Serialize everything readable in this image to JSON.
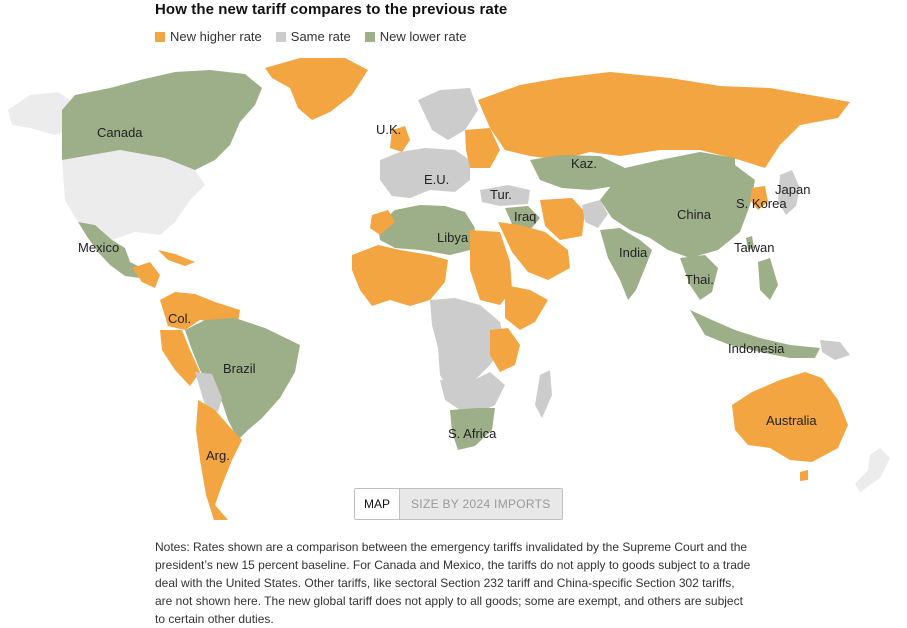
{
  "title": "How the new tariff compares to the previous rate",
  "legend": [
    {
      "label": "New higher rate",
      "color": "#f2a541"
    },
    {
      "label": "Same rate",
      "color": "#cccccc"
    },
    {
      "label": "New lower rate",
      "color": "#9caf88"
    }
  ],
  "colors": {
    "higher": "#f2a541",
    "same": "#cccccc",
    "lower": "#9caf88",
    "nodata": "#ececec"
  },
  "map": {
    "labels": {
      "canada": "Canada",
      "uk": "U.K.",
      "eu": "E.U.",
      "kaz": "Kaz.",
      "japan": "Japan",
      "tur": "Tur.",
      "iraq": "Iraq",
      "china": "China",
      "skorea": "S. Korea",
      "mexico": "Mexico",
      "libya": "Libya",
      "india": "India",
      "taiwan": "Taiwan",
      "thai": "Thai.",
      "col": "Col.",
      "brazil": "Brazil",
      "indonesia": "Indonesia",
      "australia": "Australia",
      "safrica": "S. Africa",
      "arg": "Arg."
    }
  },
  "toggle": {
    "map": "MAP",
    "size": "SIZE BY 2024 IMPORTS"
  },
  "notes": "Notes: Rates shown are a comparison between the emergency tariffs invalidated by the Supreme Court and the president’s new 15 percent baseline. For Canada and Mexico, the tariffs do not apply to goods subject to a trade deal with the United States. Other tariffs, like sectoral Section 232 tariff and China-specific Section 302 tariffs, are not shown here. The new global tariff does not apply to all goods; some are exempt, and others are subject to certain other duties."
}
